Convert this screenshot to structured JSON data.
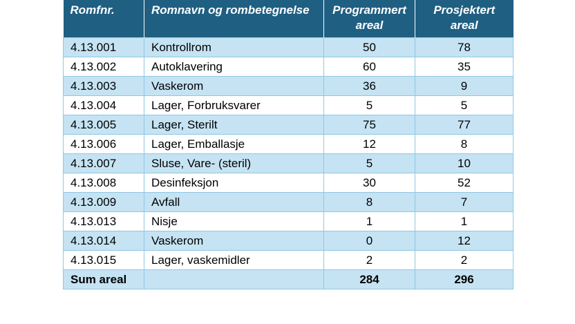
{
  "table": {
    "headers": {
      "romfnr": "Romfnr.",
      "romnavn": "Romnavn og rombetegnelse",
      "programmert_line1": "Programmert",
      "programmert_line2": "areal",
      "prosjektert_line1": "Prosjektert",
      "prosjektert_line2": "areal"
    },
    "rows": [
      {
        "romfnr": "4.13.001",
        "romnavn": "Kontrollrom",
        "programmert": "50",
        "prosjektert": "78"
      },
      {
        "romfnr": "4.13.002",
        "romnavn": "Autoklavering",
        "programmert": "60",
        "prosjektert": "35"
      },
      {
        "romfnr": "4.13.003",
        "romnavn": "Vaskerom",
        "programmert": "36",
        "prosjektert": "9"
      },
      {
        "romfnr": "4.13.004",
        "romnavn": "Lager, Forbruksvarer",
        "programmert": "5",
        "prosjektert": "5"
      },
      {
        "romfnr": "4.13.005",
        "romnavn": "Lager, Sterilt",
        "programmert": "75",
        "prosjektert": "77"
      },
      {
        "romfnr": "4.13.006",
        "romnavn": "Lager, Emballasje",
        "programmert": "12",
        "prosjektert": "8"
      },
      {
        "romfnr": "4.13.007",
        "romnavn": "Sluse, Vare- (steril)",
        "programmert": "5",
        "prosjektert": "10"
      },
      {
        "romfnr": "4.13.008",
        "romnavn": "Desinfeksjon",
        "programmert": "30",
        "prosjektert": "52"
      },
      {
        "romfnr": "4.13.009",
        "romnavn": "Avfall",
        "programmert": "8",
        "prosjektert": "7"
      },
      {
        "romfnr": "4.13.013",
        "romnavn": "Nisje",
        "programmert": "1",
        "prosjektert": "1"
      },
      {
        "romfnr": "4.13.014",
        "romnavn": "Vaskerom",
        "programmert": "0",
        "prosjektert": "12"
      },
      {
        "romfnr": "4.13.015",
        "romnavn": "Lager, vaskemidler",
        "programmert": "2",
        "prosjektert": "2"
      }
    ],
    "sum": {
      "label": "Sum areal",
      "programmert": "284",
      "prosjektert": "296"
    }
  },
  "colors": {
    "header_bg": "#1f5f82",
    "row_shade": "#c5e3f3",
    "border": "#8fc7e3"
  }
}
